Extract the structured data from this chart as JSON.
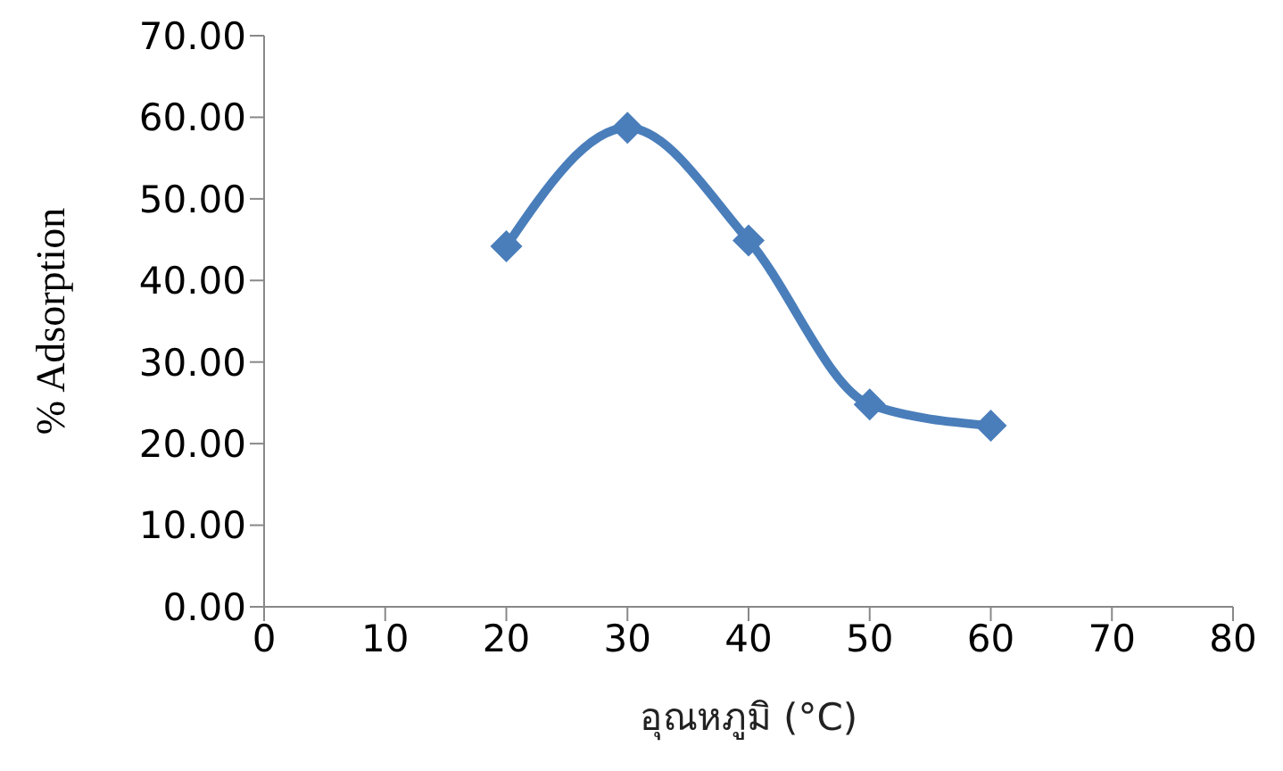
{
  "chart_data": {
    "type": "line",
    "xlabel": "อุณหภูมิ (°C)",
    "ylabel": "% Adsorption",
    "x": [
      20,
      30,
      40,
      50,
      60
    ],
    "series": [
      {
        "color": "#4a7ebb",
        "values": [
          44.2,
          58.7,
          44.9,
          24.8,
          22.2
        ]
      }
    ],
    "xlim": [
      0,
      80
    ],
    "xticks": [
      0,
      10,
      20,
      30,
      40,
      50,
      60,
      70,
      80
    ],
    "ylim": [
      0,
      70
    ],
    "yticks": [
      {
        "value": 0,
        "label": "0.00"
      },
      {
        "value": 10,
        "label": "10.00"
      },
      {
        "value": 20,
        "label": "20.00"
      },
      {
        "value": 30,
        "label": "30.00"
      },
      {
        "value": 40,
        "label": "40.00"
      },
      {
        "value": 50,
        "label": "50.00"
      },
      {
        "value": 60,
        "label": "60.00"
      },
      {
        "value": 70,
        "label": "70.00"
      }
    ],
    "marker": "diamond",
    "grid": false,
    "legend": false
  }
}
